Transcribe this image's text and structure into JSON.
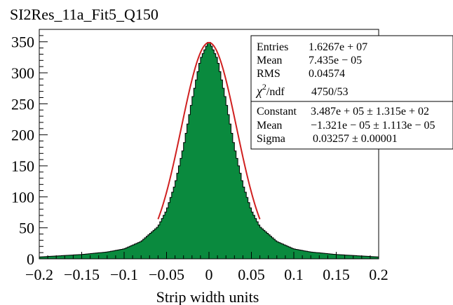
{
  "chart_data": {
    "type": "histogram",
    "title": "SI2Res_11a_Fit5_Q150",
    "xlabel": "Strip width units",
    "ylabel": "",
    "xlim": [
      -0.2,
      0.2
    ],
    "ylim": [
      0,
      370
    ],
    "y_unit_scale": 1000,
    "x_ticks": [
      "−0.2",
      "−0.15",
      "−0.1",
      "−0.05",
      "0",
      "0.05",
      "0.1",
      "0.15",
      "0.2"
    ],
    "x_tick_values": [
      -0.2,
      -0.15,
      -0.1,
      -0.05,
      0,
      0.05,
      0.1,
      0.15,
      0.2
    ],
    "y_ticks": [
      "0",
      "50",
      "100",
      "150",
      "200",
      "250",
      "300",
      "350"
    ],
    "y_tick_values": [
      0,
      50,
      100,
      150,
      200,
      250,
      300,
      350
    ],
    "histogram": {
      "fill_color": "#0a8a3e",
      "edge_color": "#000000",
      "bin_width": 0.002,
      "profile_x": [
        -0.2,
        -0.15,
        -0.12,
        -0.1,
        -0.08,
        -0.06,
        -0.05,
        -0.04,
        -0.03,
        -0.02,
        -0.01,
        0,
        0.01,
        0.02,
        0.03,
        0.04,
        0.05,
        0.06,
        0.08,
        0.1,
        0.12,
        0.15,
        0.2
      ],
      "profile_y": [
        3,
        7,
        11,
        16,
        28,
        52,
        78,
        120,
        180,
        255,
        322,
        352,
        322,
        255,
        180,
        120,
        78,
        52,
        28,
        16,
        11,
        7,
        3
      ]
    },
    "fit": {
      "name": "gaus",
      "color": "#d02020",
      "constant_thousands": 348.7,
      "mean": -1.321e-05,
      "sigma": 0.03257,
      "drawn_range": [
        -0.06,
        0.06
      ]
    },
    "stats_box": {
      "placement": "top-right",
      "rows": [
        {
          "label": "Entries",
          "value": "1.6267e + 07"
        },
        {
          "label": "Mean",
          "value": "7.435e − 05"
        },
        {
          "label": "RMS",
          "value": "0.04574"
        },
        {
          "label": "chi2/ndf",
          "value": "4750/53"
        },
        {
          "label": "Constant",
          "value": "3.487e + 05 ± 1.315e + 02"
        },
        {
          "label": "Mean",
          "value": "−1.321e − 05 ± 1.113e − 05"
        },
        {
          "label": "Sigma",
          "value": "0.03257 ± 0.00001"
        }
      ]
    }
  }
}
